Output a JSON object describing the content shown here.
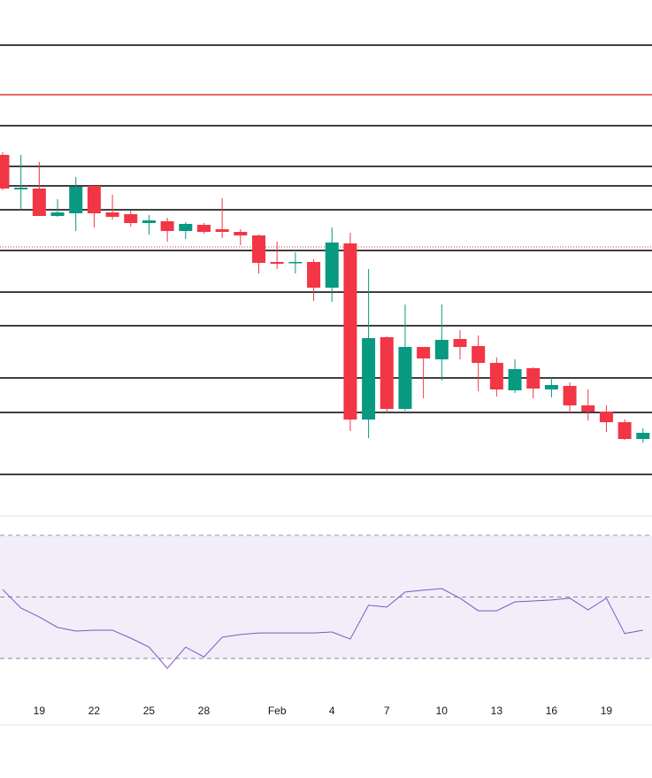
{
  "chart_data": [
    {
      "type": "candlestick",
      "categories": [
        null,
        null,
        "19",
        null,
        null,
        "22",
        null,
        null,
        "25",
        null,
        null,
        "28",
        null,
        null,
        null,
        "Feb",
        null,
        null,
        "4",
        null,
        null,
        "7",
        null,
        null,
        "10",
        null,
        null,
        "13",
        null,
        null,
        "16",
        null,
        null,
        "19",
        null,
        null
      ],
      "open": [
        405,
        366,
        367,
        336,
        339,
        370,
        340,
        338,
        328,
        330,
        319,
        326,
        321,
        318,
        314,
        284,
        283,
        284,
        255,
        305,
        106,
        199,
        118,
        188,
        174,
        197,
        189,
        170,
        139,
        164,
        140,
        144,
        122,
        115,
        103,
        84
      ],
      "high": [
        408,
        405,
        397,
        355,
        380,
        370,
        360,
        342,
        337,
        334,
        329,
        328,
        356,
        321,
        315,
        307,
        295,
        287,
        323,
        317,
        276,
        200,
        236,
        188,
        236,
        207,
        201,
        176,
        174,
        165,
        153,
        148,
        140,
        122,
        106,
        96
      ],
      "low": [
        365,
        343,
        336,
        335,
        319,
        323,
        332,
        324,
        315,
        307,
        310,
        316,
        311,
        303,
        271,
        276,
        271,
        240,
        239,
        93,
        85,
        114,
        116,
        130,
        150,
        174,
        138,
        132,
        136,
        130,
        131,
        114,
        105,
        92,
        83,
        80
      ],
      "close": [
        367,
        368,
        336,
        340,
        369,
        339,
        335,
        328,
        331,
        319,
        327,
        318,
        318,
        314,
        283,
        282,
        284,
        255,
        306,
        106,
        198,
        118,
        188,
        175,
        196,
        188,
        170,
        140,
        163,
        141,
        145,
        122,
        115,
        103,
        84,
        91
      ],
      "up_color": "#089981",
      "down_color": "#f23645",
      "ylim": [
        0,
        580
      ],
      "hlines": [
        {
          "value": 529,
          "color": "#000000"
        },
        {
          "value": 473,
          "color": "#e53935"
        },
        {
          "value": 438,
          "color": "#000000"
        },
        {
          "value": 392,
          "color": "#000000"
        },
        {
          "value": 370,
          "color": "#000000"
        },
        {
          "value": 343,
          "color": "#000000"
        },
        {
          "value": 301,
          "color": "#e53935",
          "style": "dotted"
        },
        {
          "value": 297,
          "color": "#000000"
        },
        {
          "value": 250,
          "color": "#000000"
        },
        {
          "value": 212,
          "color": "#000000"
        },
        {
          "value": 153,
          "color": "#000000"
        },
        {
          "value": 114,
          "color": "#000000"
        },
        {
          "value": 44,
          "color": "#000000"
        }
      ]
    },
    {
      "type": "line",
      "values": [
        52.4,
        46.4,
        43.5,
        40.1,
        38.9,
        39.2,
        39.2,
        36.6,
        33.7,
        26.8,
        33.7,
        30.5,
        36.9,
        37.8,
        38.3,
        38.3,
        38.3,
        38.3,
        38.6,
        36.3,
        47.3,
        46.7,
        51.6,
        52.2,
        52.7,
        49.6,
        45.5,
        45.5,
        48.4,
        48.7,
        49.0,
        49.6,
        45.8,
        49.6,
        38.1,
        39.2
      ],
      "color": "#7e57c2",
      "ylim": [
        8.7,
        76.3
      ],
      "band": [
        30,
        70
      ],
      "band_color": "rgba(126,87,194,0.1)",
      "levels": [
        70,
        50,
        30
      ]
    }
  ]
}
